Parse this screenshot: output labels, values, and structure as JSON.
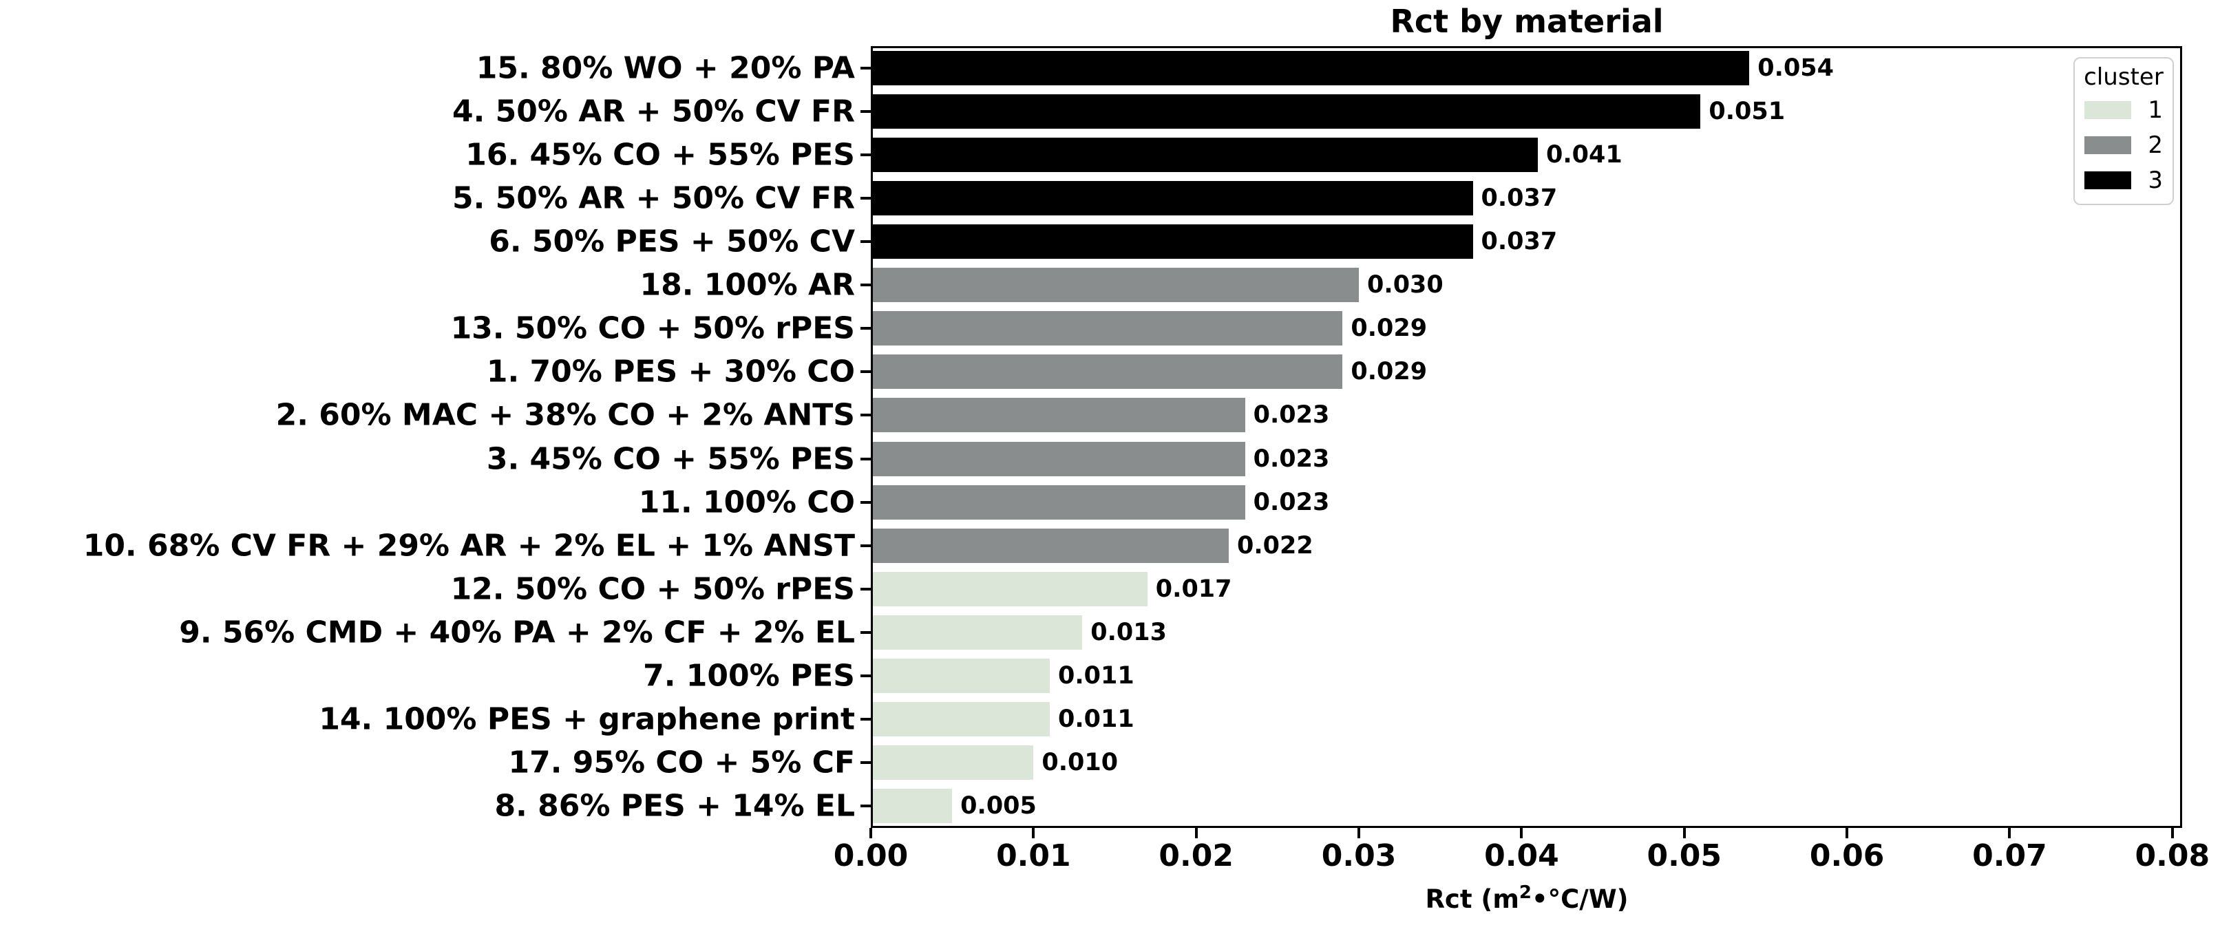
{
  "title": "Rct by material",
  "legend": {
    "title": "cluster",
    "items": [
      {
        "label": "1",
        "color": "#dce6d8"
      },
      {
        "label": "2",
        "color": "#8a8d8e"
      },
      {
        "label": "3",
        "color": "#000000"
      }
    ]
  },
  "x_axis": {
    "label_prefix": "Rct  (m",
    "label_sup": "2",
    "label_suffix": "•°C/W)",
    "tick_labels": [
      "0.00",
      "0.01",
      "0.02",
      "0.03",
      "0.04",
      "0.05",
      "0.06",
      "0.07",
      "0.08"
    ]
  },
  "chart_data": {
    "type": "bar",
    "orientation": "horizontal",
    "title": "Rct by material",
    "xlabel": "Rct (m2•°C/W)",
    "ylabel": "",
    "xlim": [
      0,
      0.0806
    ],
    "grid": false,
    "legend_position": "upper right",
    "legend_title": "cluster",
    "categories": [
      "15. 80% WO + 20% PA",
      "4. 50% AR + 50% CV FR",
      "16. 45% CO + 55% PES",
      "5. 50% AR + 50% CV FR",
      "6. 50% PES + 50% CV",
      "18. 100% AR",
      "13. 50% CO + 50% rPES",
      "1. 70% PES + 30% CO",
      "2. 60% MAC + 38% CO + 2% ANTS",
      "3. 45% CO + 55% PES",
      "11. 100% CO",
      "10. 68% CV FR + 29% AR + 2% EL + 1% ANST",
      "12. 50% CO + 50% rPES",
      "9. 56% CMD + 40% PA + 2% CF + 2% EL",
      "7. 100% PES",
      "14. 100% PES + graphene print",
      "17. 95% CO + 5% CF",
      "8. 86% PES + 14% EL"
    ],
    "values": [
      0.054,
      0.051,
      0.041,
      0.037,
      0.037,
      0.03,
      0.029,
      0.029,
      0.023,
      0.023,
      0.023,
      0.022,
      0.017,
      0.013,
      0.011,
      0.011,
      0.01,
      0.005
    ],
    "value_labels": [
      "0.054",
      "0.051",
      "0.041",
      "0.037",
      "0.037",
      "0.030",
      "0.029",
      "0.029",
      "0.023",
      "0.023",
      "0.023",
      "0.022",
      "0.017",
      "0.013",
      "0.011",
      "0.011",
      "0.010",
      "0.005"
    ],
    "clusters": [
      3,
      3,
      3,
      3,
      3,
      2,
      2,
      2,
      2,
      2,
      2,
      2,
      1,
      1,
      1,
      1,
      1,
      1
    ],
    "cluster_colors": {
      "1": "#dce6d8",
      "2": "#8a8d8e",
      "3": "#000000"
    }
  }
}
